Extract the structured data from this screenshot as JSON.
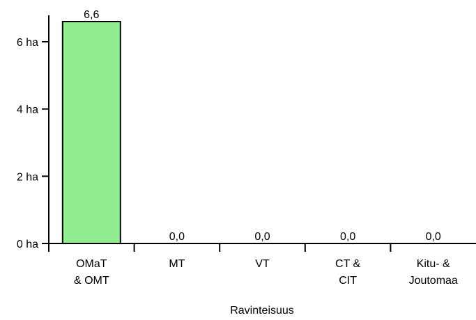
{
  "chart_data": {
    "type": "bar",
    "categories": [
      [
        "OMaT",
        "& OMT"
      ],
      [
        "MT"
      ],
      [
        "VT"
      ],
      [
        "CT &",
        "CIT"
      ],
      [
        "Kitu- &",
        "Joutomaa"
      ]
    ],
    "values": [
      6.6,
      0.0,
      0.0,
      0.0,
      0.0
    ],
    "data_labels": [
      "6,6",
      "0,0",
      "0,0",
      "0,0",
      "0,0"
    ],
    "xlabel": "Ravinteisuus",
    "ylabel": "",
    "ylim": [
      0,
      7
    ],
    "yticks": [
      {
        "value": 0,
        "label": "0 ha"
      },
      {
        "value": 2,
        "label": "2 ha"
      },
      {
        "value": 4,
        "label": "4 ha"
      },
      {
        "value": 6,
        "label": "6 ha"
      }
    ],
    "grid": false,
    "bar_color": "#90ee90",
    "bar_edge_color": "#000000"
  }
}
